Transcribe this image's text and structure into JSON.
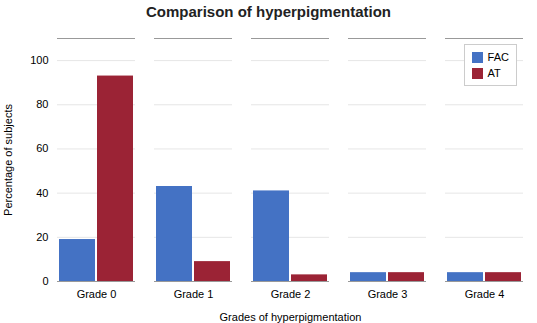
{
  "chart_data": {
    "type": "bar",
    "title": "Comparison of hyperpigmentation",
    "xlabel": "Grades of hyperpigmentation",
    "ylabel": "Percentage of subjects",
    "categories": [
      "Grade 0",
      "Grade 1",
      "Grade 2",
      "Grade 3",
      "Grade 4"
    ],
    "series": [
      {
        "name": "FAC",
        "color": "#4472C4",
        "values": [
          19,
          43,
          41,
          4,
          4
        ]
      },
      {
        "name": "AT",
        "color": "#9B2335",
        "values": [
          93,
          9,
          3,
          4,
          4
        ]
      }
    ],
    "ylim": [
      0,
      110
    ],
    "yticks": [
      0,
      20,
      40,
      60,
      80,
      100
    ],
    "grid": true,
    "legend": "upper right"
  }
}
